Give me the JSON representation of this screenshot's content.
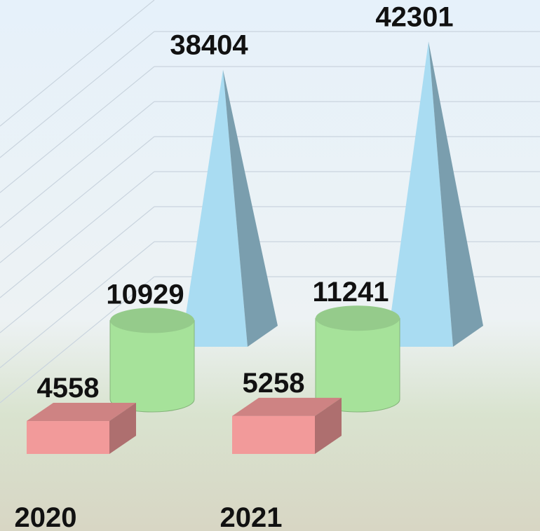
{
  "chart_data": {
    "type": "bar3d",
    "categories": [
      "2020",
      "2021"
    ],
    "series": [
      {
        "color": "#f29a9a",
        "values": [
          4558,
          5258
        ]
      },
      {
        "color": "#a6e29a",
        "values": [
          10929,
          11241
        ]
      },
      {
        "color": "#a9dcf2",
        "values": [
          38404,
          42301
        ]
      }
    ]
  }
}
